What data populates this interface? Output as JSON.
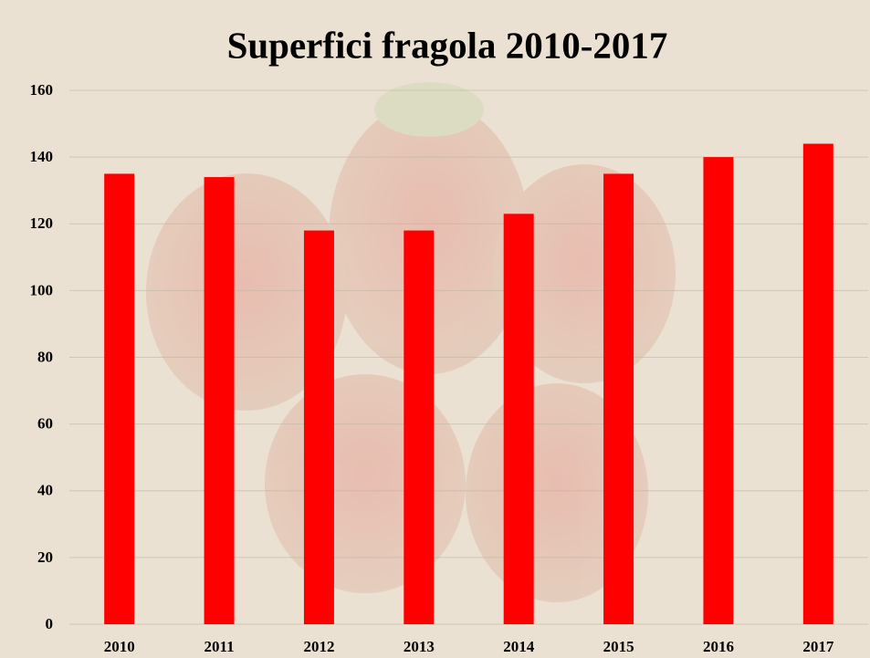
{
  "chart_data": {
    "type": "bar",
    "title": "Superfici fragola 2010-2017",
    "categories": [
      "2010",
      "2011",
      "2012",
      "2013",
      "2014",
      "2015",
      "2016",
      "2017"
    ],
    "values": [
      135,
      134,
      118,
      118,
      123,
      135,
      140,
      144
    ],
    "color": "#ff0000",
    "ylim": [
      0,
      160
    ],
    "yticks": [
      0,
      20,
      40,
      60,
      80,
      100,
      120,
      140,
      160
    ],
    "grid": true
  }
}
